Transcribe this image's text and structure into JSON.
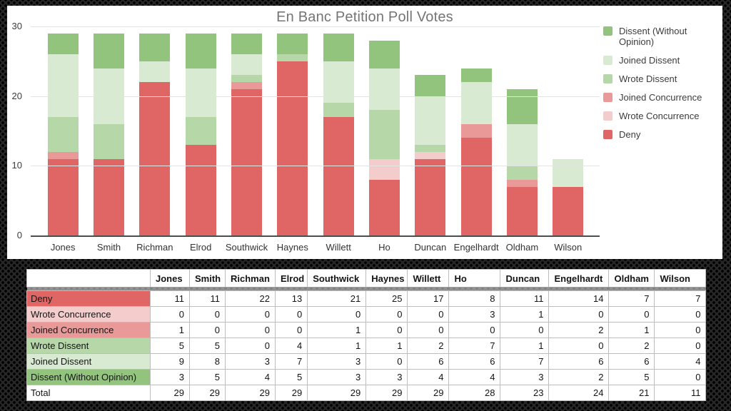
{
  "chart_data": {
    "type": "bar",
    "stacked": true,
    "title": "En Banc Petition Poll Votes",
    "categories": [
      "Jones",
      "Smith",
      "Richman",
      "Elrod",
      "Southwick",
      "Haynes",
      "Willett",
      "Ho",
      "Duncan",
      "Engelhardt",
      "Oldham",
      "Wilson"
    ],
    "series": [
      {
        "name": "Deny",
        "color": "#e06666",
        "values": [
          11,
          11,
          22,
          13,
          21,
          25,
          17,
          8,
          11,
          14,
          7,
          7
        ]
      },
      {
        "name": "Wrote Concurrence",
        "color": "#f4cccc",
        "values": [
          0,
          0,
          0,
          0,
          0,
          0,
          0,
          3,
          1,
          0,
          0,
          0
        ]
      },
      {
        "name": "Joined Concurrence",
        "color": "#ea9999",
        "values": [
          1,
          0,
          0,
          0,
          1,
          0,
          0,
          0,
          0,
          2,
          1,
          0
        ]
      },
      {
        "name": "Wrote Dissent",
        "color": "#b6d7a8",
        "values": [
          5,
          5,
          0,
          4,
          1,
          1,
          2,
          7,
          1,
          0,
          2,
          0
        ]
      },
      {
        "name": "Joined Dissent",
        "color": "#d9ead3",
        "values": [
          9,
          8,
          3,
          7,
          3,
          0,
          6,
          6,
          7,
          6,
          6,
          4
        ]
      },
      {
        "name": "Dissent (Without Opinion)",
        "color": "#93c47d",
        "values": [
          3,
          5,
          4,
          5,
          3,
          3,
          4,
          4,
          3,
          2,
          5,
          0
        ]
      }
    ],
    "stack_order": "bottom-to-top",
    "totals": [
      29,
      29,
      29,
      29,
      29,
      29,
      29,
      28,
      23,
      24,
      21,
      11
    ],
    "xlabel": "",
    "ylabel": "",
    "ylim": [
      0,
      30
    ],
    "y_ticks": [
      0,
      10,
      20,
      30
    ],
    "grid": true,
    "legend_position": "right",
    "legend": [
      {
        "label": "Dissent (Without Opinion)",
        "color": "#93c47d"
      },
      {
        "label": "Joined Dissent",
        "color": "#d9ead3"
      },
      {
        "label": "Wrote Dissent",
        "color": "#b6d7a8"
      },
      {
        "label": "Joined Concurrence",
        "color": "#ea9999"
      },
      {
        "label": "Wrote Concurrence",
        "color": "#f4cccc"
      },
      {
        "label": "Deny",
        "color": "#e06666"
      }
    ]
  },
  "table": {
    "corner_label": "",
    "columns": [
      "Jones",
      "Smith",
      "Richman",
      "Elrod",
      "Southwick",
      "Haynes",
      "Willett",
      "Ho",
      "Duncan",
      "Engelhardt",
      "Oldham",
      "Wilson"
    ],
    "rows": [
      {
        "label": "Deny",
        "color": "#e06666",
        "values": [
          11,
          11,
          22,
          13,
          21,
          25,
          17,
          8,
          11,
          14,
          7,
          7
        ]
      },
      {
        "label": "Wrote Concurrence",
        "color": "#f4cccc",
        "values": [
          0,
          0,
          0,
          0,
          0,
          0,
          0,
          3,
          1,
          0,
          0,
          0
        ]
      },
      {
        "label": "Joined Concurrence",
        "color": "#ea9999",
        "values": [
          1,
          0,
          0,
          0,
          1,
          0,
          0,
          0,
          0,
          2,
          1,
          0
        ]
      },
      {
        "label": "Wrote Dissent",
        "color": "#b6d7a8",
        "values": [
          5,
          5,
          0,
          4,
          1,
          1,
          2,
          7,
          1,
          0,
          2,
          0
        ]
      },
      {
        "label": "Joined Dissent",
        "color": "#d9ead3",
        "values": [
          9,
          8,
          3,
          7,
          3,
          0,
          6,
          6,
          7,
          6,
          6,
          4
        ]
      },
      {
        "label": "Dissent (Without Opinion)",
        "color": "#93c47d",
        "values": [
          3,
          5,
          4,
          5,
          3,
          3,
          4,
          4,
          3,
          2,
          5,
          0
        ]
      }
    ],
    "total_row": {
      "label": "Total",
      "values": [
        29,
        29,
        29,
        29,
        29,
        29,
        29,
        28,
        23,
        24,
        21,
        11
      ]
    }
  }
}
